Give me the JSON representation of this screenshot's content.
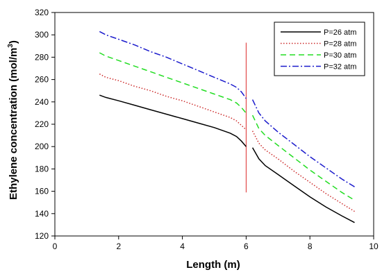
{
  "chart_data": {
    "type": "line",
    "title": "",
    "xlabel": "Length (m)",
    "ylabel_main": "Ethylene concentration (mol/m",
    "ylabel_sup": "3",
    "ylabel_close": ")",
    "xlim": [
      0,
      10
    ],
    "ylim": [
      120,
      320
    ],
    "xticks": [
      0,
      2,
      4,
      6,
      8,
      10
    ],
    "yticks": [
      120,
      140,
      160,
      180,
      200,
      220,
      240,
      260,
      280,
      300,
      320
    ],
    "grid": false,
    "legend_position": "top-right",
    "vertical_line": {
      "x": 6,
      "y_range": [
        159,
        293
      ],
      "color": "#dd2a2a"
    },
    "series": [
      {
        "name": "P=26 atm",
        "color": "#000000",
        "dash": "",
        "segments": [
          {
            "x": [
              1.4,
              1.6,
              2.0,
              2.5,
              3.0,
              3.5,
              4.0,
              4.5,
              5.0,
              5.5,
              5.7,
              5.85,
              6.0
            ],
            "y": [
              246,
              244,
              241,
              237,
              233,
              229,
              225,
              221,
              217,
              212,
              209,
              205,
              200
            ]
          },
          {
            "x": [
              6.2,
              6.4,
              6.6,
              7.0,
              7.5,
              8.0,
              8.5,
              9.0,
              9.4
            ],
            "y": [
              199,
              189,
              183,
              175,
              165,
              155,
              146,
              138,
              132
            ]
          }
        ]
      },
      {
        "name": "P=28 atm",
        "color": "#cc2a2a",
        "dash": "1.5,2.5",
        "segments": [
          {
            "x": [
              1.4,
              1.6,
              2.0,
              2.5,
              3.0,
              3.5,
              4.0,
              4.5,
              5.0,
              5.5,
              5.7,
              5.85,
              6.0
            ],
            "y": [
              265,
              262,
              259,
              254,
              250,
              245,
              241,
              236,
              231,
              226,
              223,
              219,
              215
            ]
          },
          {
            "x": [
              6.2,
              6.4,
              6.6,
              7.0,
              7.5,
              8.0,
              8.5,
              9.0,
              9.4
            ],
            "y": [
              214,
              203,
              197,
              189,
              178,
              168,
              158,
              149,
              142
            ]
          }
        ]
      },
      {
        "name": "P=30 atm",
        "color": "#22dd22",
        "dash": "8,5",
        "segments": [
          {
            "x": [
              1.4,
              1.6,
              2.0,
              2.5,
              3.0,
              3.5,
              4.0,
              4.5,
              5.0,
              5.5,
              5.7,
              5.85,
              6.0
            ],
            "y": [
              284,
              281,
              277,
              272,
              267,
              262,
              257,
              252,
              247,
              242,
              239,
              235,
              230
            ]
          },
          {
            "x": [
              6.2,
              6.4,
              6.6,
              7.0,
              7.5,
              8.0,
              8.5,
              9.0,
              9.4
            ],
            "y": [
              228,
              216,
              210,
              201,
              190,
              179,
              169,
              159,
              152
            ]
          }
        ]
      },
      {
        "name": "P=32 atm",
        "color": "#1a1acc",
        "dash": "9,3,2,3",
        "segments": [
          {
            "x": [
              1.4,
              1.6,
              2.0,
              2.5,
              3.0,
              3.5,
              4.0,
              4.5,
              5.0,
              5.5,
              5.7,
              5.85,
              6.0
            ],
            "y": [
              303,
              300,
              296,
              291,
              285,
              280,
              274,
              268,
              262,
              256,
              253,
              249,
              243
            ]
          },
          {
            "x": [
              6.2,
              6.4,
              6.6,
              7.0,
              7.5,
              8.0,
              8.5,
              9.0,
              9.4
            ],
            "y": [
              242,
              230,
              223,
              213,
              202,
              191,
              181,
              171,
              164
            ]
          }
        ]
      }
    ]
  }
}
